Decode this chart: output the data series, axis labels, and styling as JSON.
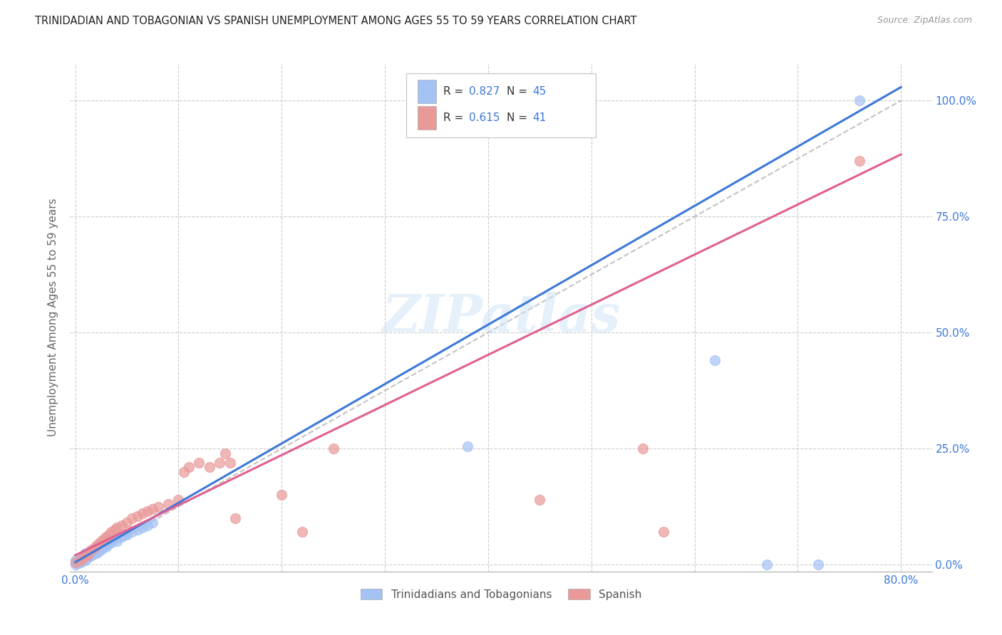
{
  "title": "TRINIDADIAN AND TOBAGONIAN VS SPANISH UNEMPLOYMENT AMONG AGES 55 TO 59 YEARS CORRELATION CHART",
  "source": "Source: ZipAtlas.com",
  "ylabel": "Unemployment Among Ages 55 to 59 years",
  "xlim": [
    -0.005,
    0.83
  ],
  "ylim": [
    -0.015,
    1.08
  ],
  "xticks": [
    0.0,
    0.1,
    0.2,
    0.3,
    0.4,
    0.5,
    0.6,
    0.7,
    0.8
  ],
  "xtick_labels": [
    "0.0%",
    "",
    "",
    "",
    "",
    "",
    "",
    "",
    "80.0%"
  ],
  "ytick_vals": [
    0.0,
    0.25,
    0.5,
    0.75,
    1.0
  ],
  "ytick_labels_right": [
    "0.0%",
    "25.0%",
    "50.0%",
    "75.0%",
    "100.0%"
  ],
  "legend_blue_R": "0.827",
  "legend_blue_N": "45",
  "legend_pink_R": "0.615",
  "legend_pink_N": "41",
  "legend_label_blue": "Trinidadians and Tobagonians",
  "legend_label_pink": "Spanish",
  "blue_scatter_color": "#a4c2f4",
  "pink_scatter_color": "#ea9999",
  "trend_blue_color": "#3c78d8",
  "trend_pink_color": "#e06090",
  "ref_line_color": "#aaaaaa",
  "title_color": "#222222",
  "right_tick_color": "#3c78d8",
  "watermark": "ZIPatlas",
  "blue_trend_slope": 1.28,
  "blue_trend_intercept": 0.005,
  "pink_trend_slope": 1.08,
  "pink_trend_intercept": 0.02,
  "blue_x": [
    0.0,
    0.0,
    0.0,
    0.003,
    0.005,
    0.005,
    0.007,
    0.008,
    0.008,
    0.01,
    0.01,
    0.01,
    0.012,
    0.013,
    0.015,
    0.015,
    0.017,
    0.018,
    0.02,
    0.02,
    0.022,
    0.023,
    0.025,
    0.027,
    0.028,
    0.03,
    0.032,
    0.033,
    0.035,
    0.037,
    0.04,
    0.042,
    0.045,
    0.048,
    0.05,
    0.055,
    0.06,
    0.065,
    0.07,
    0.075,
    0.38,
    0.62,
    0.67,
    0.72,
    0.76
  ],
  "blue_y": [
    0.0,
    0.005,
    0.01,
    0.003,
    0.005,
    0.012,
    0.008,
    0.015,
    0.02,
    0.01,
    0.018,
    0.025,
    0.015,
    0.022,
    0.018,
    0.028,
    0.022,
    0.03,
    0.025,
    0.035,
    0.028,
    0.038,
    0.032,
    0.04,
    0.045,
    0.038,
    0.045,
    0.05,
    0.048,
    0.055,
    0.05,
    0.058,
    0.06,
    0.065,
    0.065,
    0.07,
    0.075,
    0.08,
    0.085,
    0.09,
    0.255,
    0.44,
    0.0,
    0.0,
    1.0
  ],
  "pink_x": [
    0.0,
    0.005,
    0.008,
    0.01,
    0.012,
    0.015,
    0.018,
    0.02,
    0.022,
    0.025,
    0.028,
    0.03,
    0.033,
    0.035,
    0.038,
    0.04,
    0.045,
    0.05,
    0.055,
    0.06,
    0.065,
    0.07,
    0.075,
    0.08,
    0.09,
    0.1,
    0.105,
    0.11,
    0.12,
    0.13,
    0.14,
    0.145,
    0.15,
    0.155,
    0.2,
    0.22,
    0.25,
    0.45,
    0.55,
    0.57,
    0.76
  ],
  "pink_y": [
    0.005,
    0.01,
    0.015,
    0.02,
    0.02,
    0.03,
    0.035,
    0.04,
    0.045,
    0.05,
    0.055,
    0.06,
    0.065,
    0.07,
    0.075,
    0.08,
    0.085,
    0.09,
    0.1,
    0.105,
    0.11,
    0.115,
    0.12,
    0.125,
    0.13,
    0.14,
    0.2,
    0.21,
    0.22,
    0.21,
    0.22,
    0.24,
    0.22,
    0.1,
    0.15,
    0.07,
    0.25,
    0.14,
    0.25,
    0.07,
    0.87
  ]
}
